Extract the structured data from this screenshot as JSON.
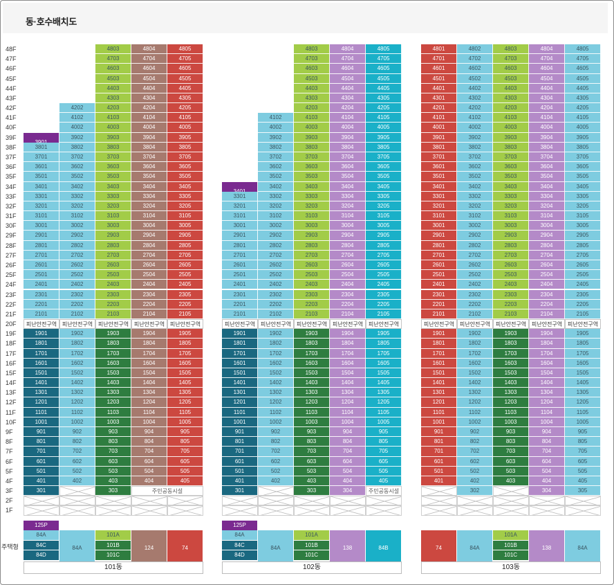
{
  "header": {
    "title": "동·호수배치도"
  },
  "type_label": "주택형",
  "safe_label": "피난안전구역",
  "facility_label": "주민공동시설",
  "floors": [
    "48F",
    "47F",
    "46F",
    "45F",
    "44F",
    "43F",
    "42F",
    "41F",
    "40F",
    "39F",
    "38F",
    "37F",
    "36F",
    "35F",
    "34F",
    "33F",
    "32F",
    "31F",
    "30F",
    "29F",
    "28F",
    "27F",
    "26F",
    "25F",
    "24F",
    "23F",
    "22F",
    "21F",
    "20F",
    "19F",
    "18F",
    "17F",
    "16F",
    "15F",
    "14F",
    "13F",
    "12F",
    "11F",
    "10F",
    "9F",
    "8F",
    "7F",
    "6F",
    "5F",
    "4F",
    "3F",
    "2F",
    "1F"
  ],
  "colors": {
    "A84_light": "#7ecce0",
    "A84_dark": "#1a6880",
    "C101_light": "#a2cc48",
    "C101_dark": "#2e7d40",
    "D124": "#a67a6e",
    "E74": "#cc4840",
    "F138": "#b48ac8",
    "G84B": "#1ab0c8",
    "P125": "#7a2a90"
  },
  "buildings": [
    {
      "name": "101동",
      "x": 33,
      "columns": [
        {
          "tops": 39,
          "low": "#1a6880",
          "high": "#7ecce0",
          "unit": "1",
          "f3": "unit",
          "special": {
            "39": "#7a2a90"
          }
        },
        {
          "tops": 42,
          "low": "#7ecce0",
          "high": "#7ecce0",
          "unit": "2",
          "f3": "x"
        },
        {
          "tops": 48,
          "low": "#2e7d40",
          "high": "#a2cc48",
          "unit": "3",
          "f3": "unit"
        },
        {
          "tops": 48,
          "low": "#a67a6e",
          "high": "#a67a6e",
          "unit": "4",
          "f3": "fac"
        },
        {
          "tops": 48,
          "low": "#cc4840",
          "high": "#cc4840",
          "unit": "5",
          "f3": "fac"
        }
      ],
      "types": [
        {
          "col": 0,
          "rows": [
            "125P",
            "84A",
            "84C",
            "84D"
          ],
          "colors": [
            "#7a2a90",
            "#7ecce0",
            "#1a6880",
            "#1a6880"
          ]
        },
        {
          "col": 1,
          "rows": [
            "84A"
          ],
          "colors": [
            "#7ecce0"
          ]
        },
        {
          "col": 2,
          "rows": [
            "101A",
            "101B",
            "101C"
          ],
          "colors": [
            "#a2cc48",
            "#2e7d40",
            "#2e7d40"
          ]
        },
        {
          "col": 3,
          "rows": [
            "124"
          ],
          "colors": [
            "#a67a6e"
          ]
        },
        {
          "col": 4,
          "rows": [
            "74"
          ],
          "colors": [
            "#cc4840"
          ]
        }
      ]
    },
    {
      "name": "102동",
      "x": 320,
      "columns": [
        {
          "tops": 34,
          "low": "#1a6880",
          "high": "#7ecce0",
          "unit": "1",
          "f3": "unit",
          "special": {
            "34": "#7a2a90"
          }
        },
        {
          "tops": 41,
          "low": "#7ecce0",
          "high": "#7ecce0",
          "unit": "2",
          "f3": "x"
        },
        {
          "tops": 48,
          "low": "#2e7d40",
          "high": "#a2cc48",
          "unit": "3",
          "f3": "unit"
        },
        {
          "tops": 48,
          "low": "#b48ac8",
          "high": "#b48ac8",
          "unit": "4",
          "f3": "unit"
        },
        {
          "tops": 48,
          "low": "#1ab0c8",
          "high": "#1ab0c8",
          "unit": "5",
          "f3": "fac"
        }
      ],
      "types": [
        {
          "col": 0,
          "rows": [
            "125P",
            "84A",
            "84C",
            "84D"
          ],
          "colors": [
            "#7a2a90",
            "#7ecce0",
            "#1a6880",
            "#1a6880"
          ]
        },
        {
          "col": 1,
          "rows": [
            "84A"
          ],
          "colors": [
            "#7ecce0"
          ]
        },
        {
          "col": 2,
          "rows": [
            "101A",
            "101B",
            "101C"
          ],
          "colors": [
            "#a2cc48",
            "#2e7d40",
            "#2e7d40"
          ]
        },
        {
          "col": 3,
          "rows": [
            "138"
          ],
          "colors": [
            "#b48ac8"
          ]
        },
        {
          "col": 4,
          "rows": [
            "84B"
          ],
          "colors": [
            "#1ab0c8"
          ]
        }
      ]
    },
    {
      "name": "103동",
      "x": 608,
      "columns": [
        {
          "tops": 48,
          "low": "#cc4840",
          "high": "#cc4840",
          "unit": "1",
          "f3": "x"
        },
        {
          "tops": 48,
          "low": "#7ecce0",
          "high": "#7ecce0",
          "unit": "2",
          "f3": "unit"
        },
        {
          "tops": 48,
          "low": "#2e7d40",
          "high": "#a2cc48",
          "unit": "3",
          "f3": "x"
        },
        {
          "tops": 48,
          "low": "#b48ac8",
          "high": "#b48ac8",
          "unit": "4",
          "f3": "unit"
        },
        {
          "tops": 48,
          "low": "#7ecce0",
          "high": "#7ecce0",
          "unit": "5",
          "f3": "unit"
        }
      ],
      "types": [
        {
          "col": 0,
          "rows": [
            "74"
          ],
          "colors": [
            "#cc4840"
          ]
        },
        {
          "col": 1,
          "rows": [
            "84A"
          ],
          "colors": [
            "#7ecce0"
          ]
        },
        {
          "col": 2,
          "rows": [
            "101A",
            "101B",
            "101C"
          ],
          "colors": [
            "#a2cc48",
            "#2e7d40",
            "#2e7d40"
          ]
        },
        {
          "col": 3,
          "rows": [
            "138"
          ],
          "colors": [
            "#b48ac8"
          ]
        },
        {
          "col": 4,
          "rows": [
            "84A"
          ],
          "colors": [
            "#7ecce0"
          ]
        }
      ]
    }
  ]
}
